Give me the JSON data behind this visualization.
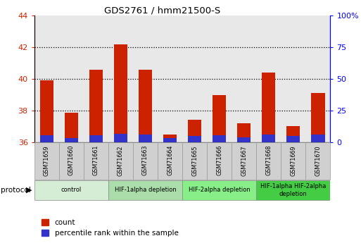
{
  "title": "GDS2761 / hmm21500-S",
  "samples": [
    "GSM71659",
    "GSM71660",
    "GSM71661",
    "GSM71662",
    "GSM71663",
    "GSM71664",
    "GSM71665",
    "GSM71666",
    "GSM71667",
    "GSM71668",
    "GSM71669",
    "GSM71670"
  ],
  "count_values": [
    39.9,
    37.85,
    40.6,
    42.2,
    40.6,
    36.5,
    37.4,
    39.0,
    37.2,
    40.4,
    37.0,
    39.1
  ],
  "percentile_values": [
    0.45,
    0.28,
    0.45,
    0.52,
    0.5,
    0.28,
    0.38,
    0.45,
    0.3,
    0.48,
    0.38,
    0.48
  ],
  "bar_base": 36.0,
  "ylim_left": [
    36,
    44
  ],
  "ylim_right": [
    0,
    100
  ],
  "yticks_left": [
    36,
    38,
    40,
    42,
    44
  ],
  "yticks_right": [
    0,
    25,
    50,
    75,
    100
  ],
  "ytick_labels_right": [
    "0",
    "25",
    "50",
    "75",
    "100%"
  ],
  "count_color": "#cc2200",
  "percentile_color": "#3333cc",
  "plot_bg_color": "#e8e8e8",
  "sample_label_bg": "#d0d0d0",
  "protocol_groups": [
    {
      "label": "control",
      "start": 0,
      "end": 2,
      "color": "#d4edd4"
    },
    {
      "label": "HIF-1alpha depletion",
      "start": 3,
      "end": 5,
      "color": "#aaddaa"
    },
    {
      "label": "HIF-2alpha depletion",
      "start": 6,
      "end": 8,
      "color": "#88ee88"
    },
    {
      "label": "HIF-1alpha HIF-2alpha\ndepletion",
      "start": 9,
      "end": 11,
      "color": "#44cc44"
    }
  ],
  "grid_color": "black",
  "bar_width": 0.55,
  "n_samples": 12
}
